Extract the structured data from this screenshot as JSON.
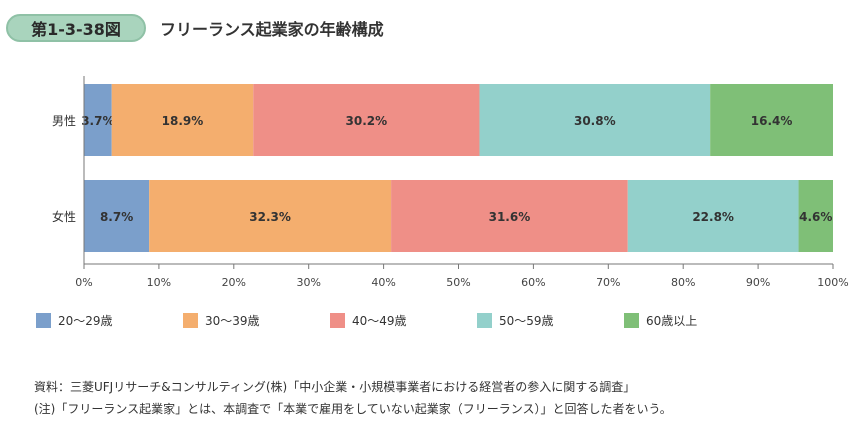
{
  "header": {
    "figure_label": "第1-3-38図",
    "title": "フリーランス起業家の年齢構成"
  },
  "chart_data": {
    "type": "bar",
    "orientation": "horizontal",
    "stacked": true,
    "categories": [
      "男性",
      "女性"
    ],
    "series": [
      {
        "name": "20～29歳",
        "color": "#7b9fcb",
        "values": [
          3.7,
          8.7
        ],
        "labels": [
          "3.7%",
          "8.7%"
        ]
      },
      {
        "name": "30～39歳",
        "color": "#f4ae6e",
        "values": [
          18.9,
          32.3
        ],
        "labels": [
          "18.9%",
          "32.3%"
        ]
      },
      {
        "name": "40～49歳",
        "color": "#ef8f87",
        "values": [
          30.2,
          31.6
        ],
        "labels": [
          "30.2%",
          "31.6%"
        ]
      },
      {
        "name": "50～59歳",
        "color": "#93d0cb",
        "values": [
          30.8,
          22.8
        ],
        "labels": [
          "30.8%",
          "22.8%"
        ]
      },
      {
        "name": "60歳以上",
        "color": "#7fbf77",
        "values": [
          16.4,
          4.6
        ],
        "labels": [
          "16.4%",
          "4.6%"
        ]
      }
    ],
    "xlim": [
      0,
      100
    ],
    "xticks": [
      "0%",
      "10%",
      "20%",
      "30%",
      "40%",
      "50%",
      "60%",
      "70%",
      "80%",
      "90%",
      "100%"
    ],
    "legend_position": "bottom",
    "grid": false
  },
  "footnotes": {
    "source": "資料：三菱UFJリサーチ&コンサルティング(株)「中小企業・小規模事業者における経営者の参入に関する調査」",
    "note": "(注)「フリーランス起業家」とは、本調査で「本業で雇用をしていない起業家（フリーランス）」と回答した者をいう。"
  }
}
